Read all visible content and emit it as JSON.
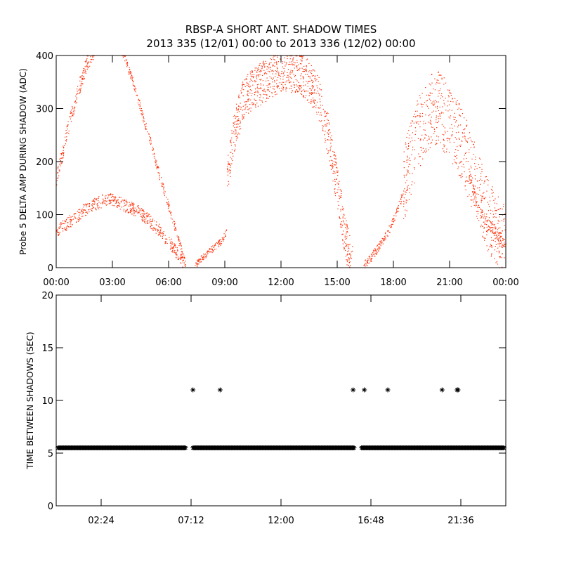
{
  "title_line1": "RBSP-A SHORT ANT. SHADOW TIMES",
  "title_line2": "2013 335 (12/01) 00:00 to 2013 336 (12/02) 00:00",
  "colors": {
    "top_points": "#ff2a00",
    "bottom_points": "#000000",
    "frame": "#000000"
  },
  "chart_data": [
    {
      "type": "scatter",
      "title": "",
      "xlabel": "",
      "ylabel": "Probe 5 DELTA AMP DURING SHADOW (ADC)",
      "xlim": [
        0,
        24
      ],
      "ylim": [
        0,
        400
      ],
      "x_unit": "hours",
      "x_ticks": [
        0,
        3,
        6,
        9,
        12,
        15,
        18,
        21,
        24
      ],
      "x_tick_labels": [
        "00:00",
        "03:00",
        "06:00",
        "09:00",
        "12:00",
        "15:00",
        "18:00",
        "21:00",
        "00:00"
      ],
      "y_ticks": [
        0,
        100,
        200,
        300,
        400
      ],
      "y_tick_labels": [
        "0",
        "100",
        "200",
        "300",
        "400"
      ],
      "grid": false,
      "series": [
        {
          "color": "#ff2a00",
          "segments": [
            {
              "band": [
                [
                  0.0,
                  70
                ],
                [
                  0.5,
                  82
                ],
                [
                  1.0,
                  95
                ],
                [
                  1.5,
                  110
                ],
                [
                  2.0,
                  120
                ],
                [
                  2.5,
                  127
                ],
                [
                  3.0,
                  130
                ],
                [
                  3.5,
                  120
                ],
                [
                  4.0,
                  113
                ],
                [
                  4.5,
                  103
                ],
                [
                  5.0,
                  88
                ],
                [
                  5.5,
                  70
                ],
                [
                  6.0,
                  50
                ],
                [
                  6.5,
                  25
                ],
                [
                  6.9,
                  5
                ]
              ],
              "spread": 12,
              "n": 560
            },
            {
              "band": [
                [
                  0.0,
                  170
                ],
                [
                  0.4,
                  230
                ],
                [
                  0.8,
                  290
                ],
                [
                  1.2,
                  340
                ],
                [
                  1.6,
                  385
                ],
                [
                  2.0,
                  410
                ]
              ],
              "spread": 15,
              "n": 200
            },
            {
              "band": [
                [
                  3.5,
                  410
                ],
                [
                  4.0,
                  360
                ],
                [
                  4.5,
                  300
                ],
                [
                  5.0,
                  240
                ],
                [
                  5.5,
                  175
                ],
                [
                  6.0,
                  115
                ],
                [
                  6.5,
                  55
                ],
                [
                  6.9,
                  5
                ]
              ],
              "spread": 8,
              "n": 240
            },
            {
              "band": [
                [
                  7.4,
                  5
                ],
                [
                  7.8,
                  20
                ],
                [
                  8.3,
                  35
                ],
                [
                  8.8,
                  50
                ],
                [
                  9.1,
                  70
                ]
              ],
              "spread": 6,
              "n": 120
            },
            {
              "band": [
                [
                  9.1,
                  170
                ],
                [
                  9.5,
                  260
                ],
                [
                  10.0,
                  320
                ],
                [
                  11.0,
                  350
                ],
                [
                  12.0,
                  370
                ],
                [
                  13.0,
                  370
                ],
                [
                  13.5,
                  350
                ],
                [
                  14.0,
                  320
                ],
                [
                  14.5,
                  250
                ],
                [
                  15.0,
                  150
                ],
                [
                  15.4,
                  60
                ],
                [
                  15.8,
                  5
                ]
              ],
              "spread": 40,
              "n": 1000
            },
            {
              "band": [
                [
                  16.4,
                  5
                ],
                [
                  16.8,
                  20
                ],
                [
                  17.3,
                  45
                ],
                [
                  17.8,
                  75
                ],
                [
                  18.2,
                  110
                ],
                [
                  18.5,
                  140
                ]
              ],
              "spread": 8,
              "n": 160
            },
            {
              "band": [
                [
                  18.5,
                  150
                ],
                [
                  19.0,
                  220
                ],
                [
                  19.5,
                  270
                ],
                [
                  20.0,
                  300
                ],
                [
                  20.5,
                  300
                ],
                [
                  21.0,
                  270
                ],
                [
                  21.5,
                  240
                ],
                [
                  22.0,
                  200
                ],
                [
                  22.5,
                  150
                ],
                [
                  23.0,
                  100
                ],
                [
                  23.5,
                  70
                ],
                [
                  24.0,
                  45
                ]
              ],
              "spread": 70,
              "n": 700
            },
            {
              "band": [
                [
                  22.0,
                  180
                ],
                [
                  22.5,
                  110
                ],
                [
                  23.0,
                  85
                ],
                [
                  23.5,
                  65
                ],
                [
                  24.0,
                  45
                ]
              ],
              "spread": 10,
              "n": 150
            }
          ]
        }
      ]
    },
    {
      "type": "scatter",
      "title": "",
      "xlabel": "",
      "ylabel": "TIME BETWEEN SHADOWS (SEC)",
      "xlim": [
        0,
        24
      ],
      "ylim": [
        0,
        20
      ],
      "x_unit": "hours",
      "x_ticks": [
        2.4,
        7.2,
        12.0,
        16.8,
        21.6
      ],
      "x_tick_labels": [
        "02:24",
        "07:12",
        "12:00",
        "16:48",
        "21:36"
      ],
      "y_ticks": [
        0,
        5,
        10,
        15,
        20
      ],
      "y_tick_labels": [
        "0",
        "5",
        "10",
        "15",
        "20"
      ],
      "grid": false,
      "series": [
        {
          "color": "#000000",
          "marker": "asterisk",
          "baseline_y": 5.5,
          "baseline_ranges": [
            [
              0.1,
              6.9
            ],
            [
              7.3,
              15.9
            ],
            [
              16.3,
              23.9
            ]
          ],
          "baseline_step": 0.05,
          "outliers": [
            {
              "x": 7.3,
              "y": 11
            },
            {
              "x": 8.75,
              "y": 11
            },
            {
              "x": 15.85,
              "y": 11
            },
            {
              "x": 16.45,
              "y": 11
            },
            {
              "x": 17.7,
              "y": 11
            },
            {
              "x": 20.6,
              "y": 11
            },
            {
              "x": 21.4,
              "y": 11
            },
            {
              "x": 21.45,
              "y": 11
            }
          ]
        }
      ]
    }
  ]
}
